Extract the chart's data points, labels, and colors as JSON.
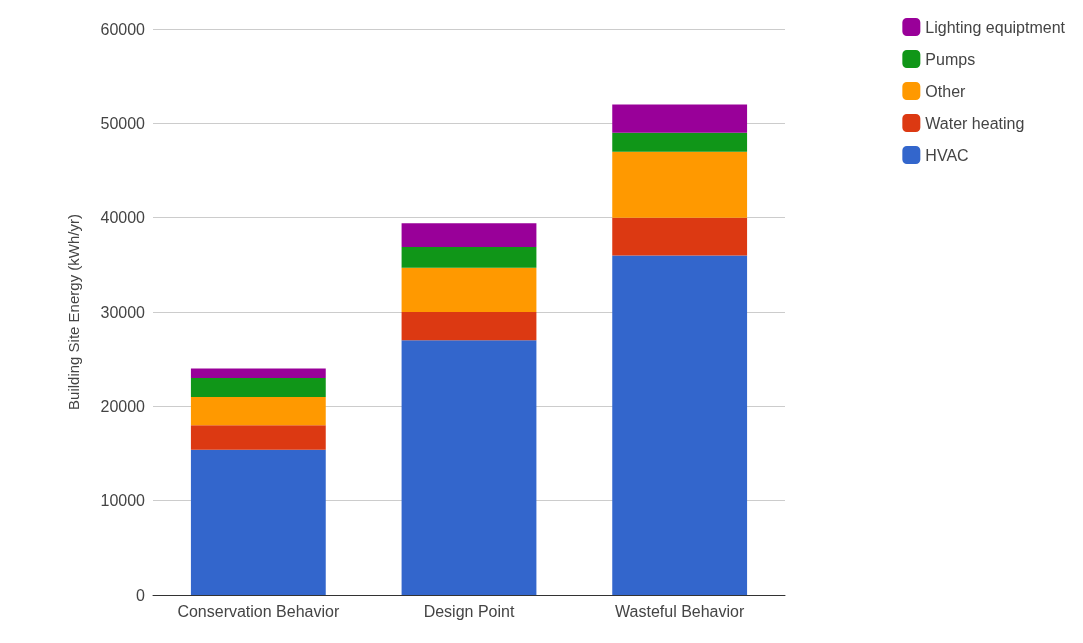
{
  "chart_data": {
    "type": "bar",
    "stacked": true,
    "ylabel": "Building Site Energy (kWh/yr)",
    "categories": [
      "Conservation Behavior",
      "Design Point",
      "Wasteful Behavior"
    ],
    "series": [
      {
        "name": "HVAC",
        "color": "#3366cc",
        "values": [
          15400,
          27000,
          36000
        ]
      },
      {
        "name": "Water heating",
        "color": "#dc3912",
        "values": [
          2600,
          3000,
          4000
        ]
      },
      {
        "name": "Other",
        "color": "#ff9900",
        "values": [
          3000,
          4700,
          7000
        ]
      },
      {
        "name": "Pumps",
        "color": "#109618",
        "values": [
          2000,
          2200,
          2000
        ]
      },
      {
        "name": "Lighting equiptment",
        "color": "#990099",
        "values": [
          1000,
          2500,
          3000
        ]
      }
    ],
    "ylim": [
      0,
      60000
    ],
    "yticks": [
      0,
      10000,
      20000,
      30000,
      40000,
      50000,
      60000
    ],
    "grid": "y",
    "legend": "top right"
  }
}
